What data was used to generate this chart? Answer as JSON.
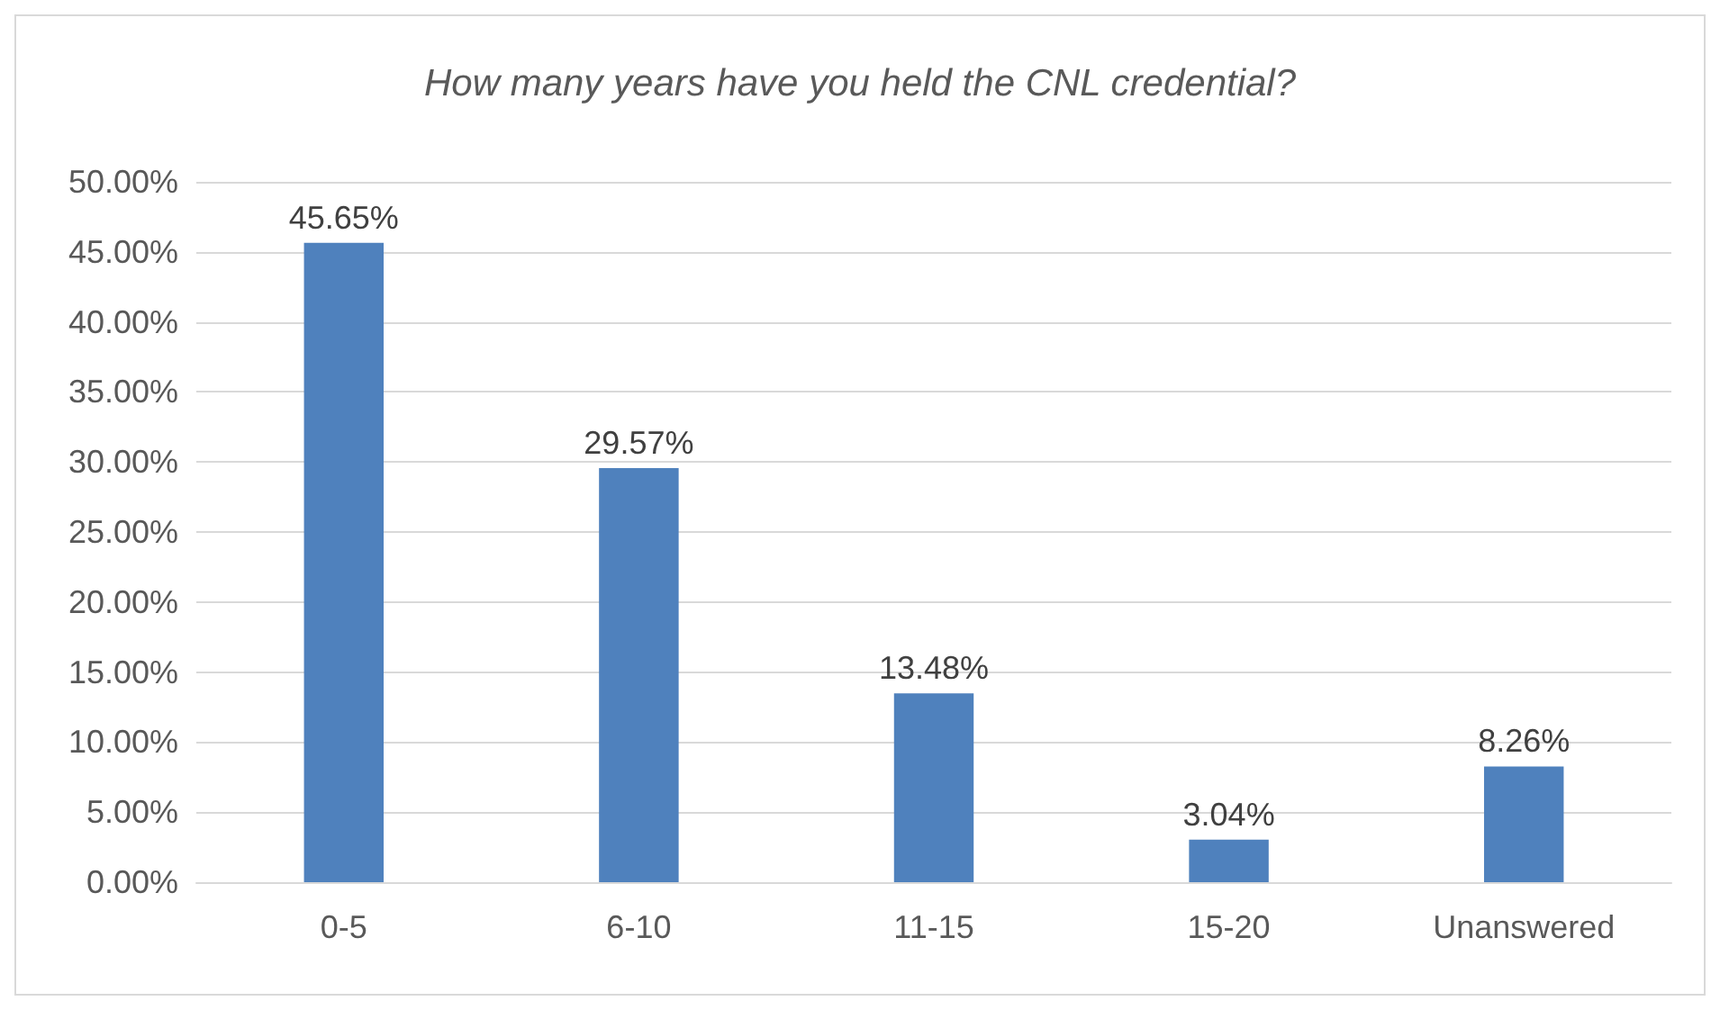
{
  "chart_data": {
    "type": "bar",
    "title": "How many years have you held the CNL credential?",
    "categories": [
      "0-5",
      "6-10",
      "11-15",
      "15-20",
      "Unanswered"
    ],
    "values": [
      45.65,
      29.57,
      13.48,
      3.04,
      8.26
    ],
    "value_labels": [
      "45.65%",
      "29.57%",
      "13.48%",
      "3.04%",
      "8.26%"
    ],
    "color": "#4f81bd",
    "ylim": [
      0,
      50
    ],
    "yticks": [
      {
        "value": 0,
        "label": "0.00%"
      },
      {
        "value": 5,
        "label": "5.00%"
      },
      {
        "value": 10,
        "label": "10.00%"
      },
      {
        "value": 15,
        "label": "15.00%"
      },
      {
        "value": 20,
        "label": "20.00%"
      },
      {
        "value": 25,
        "label": "25.00%"
      },
      {
        "value": 30,
        "label": "30.00%"
      },
      {
        "value": 35,
        "label": "35.00%"
      },
      {
        "value": 40,
        "label": "40.00%"
      },
      {
        "value": 45,
        "label": "45.00%"
      },
      {
        "value": 50,
        "label": "50.00%"
      }
    ],
    "grid": "y"
  }
}
